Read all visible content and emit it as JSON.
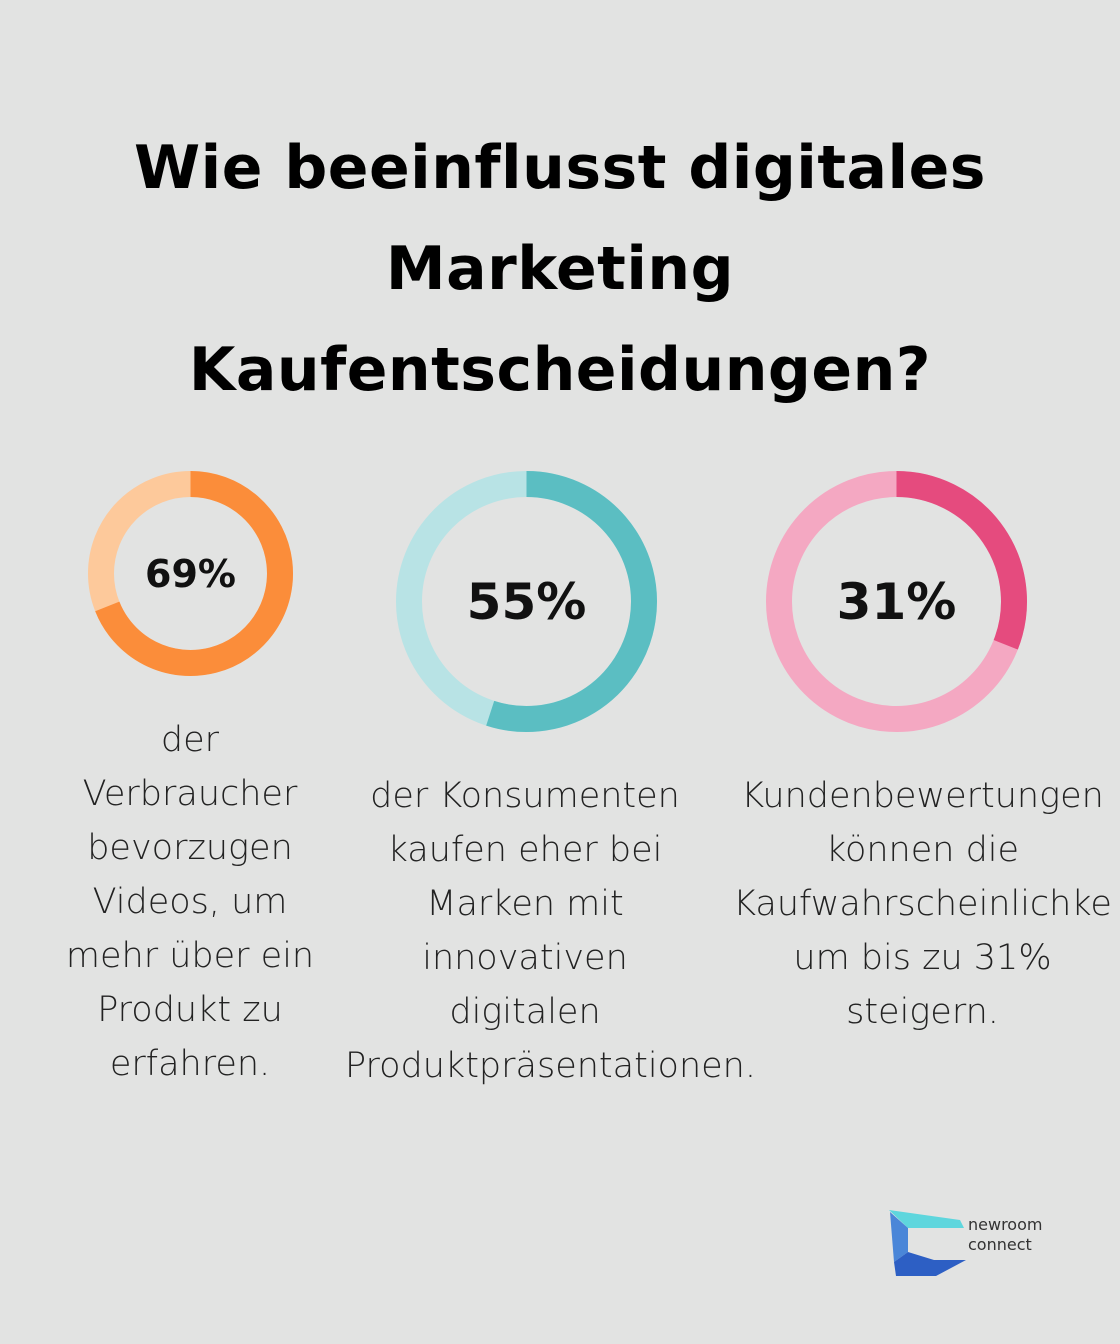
{
  "title_lines": [
    "Wie beeinflusst digitales",
    "Marketing",
    "Kaufentscheidungen?"
  ],
  "chart_data": {
    "type": "pie",
    "subtype": "donut",
    "title": "Wie beeinflusst digitales Marketing Kaufentscheidungen?",
    "items": [
      {
        "value": 69,
        "label": "69%",
        "color_main": "#fb8d3a",
        "color_track": "#fdc99b",
        "description_lines": [
          "der",
          "Verbraucher",
          "bevorzugen",
          "Videos, um",
          "mehr über ein",
          "Produkt zu",
          "erfahren."
        ]
      },
      {
        "value": 55,
        "label": "55%",
        "color_main": "#5bbec2",
        "color_track": "#b8e3e5",
        "description_lines": [
          "der Konsumenten",
          "kaufen eher bei",
          "Marken mit",
          "innovativen",
          "digitalen",
          "Produktpräsentationen."
        ]
      },
      {
        "value": 31,
        "label": "31%",
        "color_main": "#e54b7e",
        "color_track": "#f4a8c2",
        "description_lines": [
          "Kundenbewertungen",
          "können die",
          "Kaufwahrscheinlichke",
          "um bis zu 31%",
          "steigern."
        ]
      }
    ]
  },
  "logo": {
    "line1": "newroom",
    "line2": "connect"
  }
}
